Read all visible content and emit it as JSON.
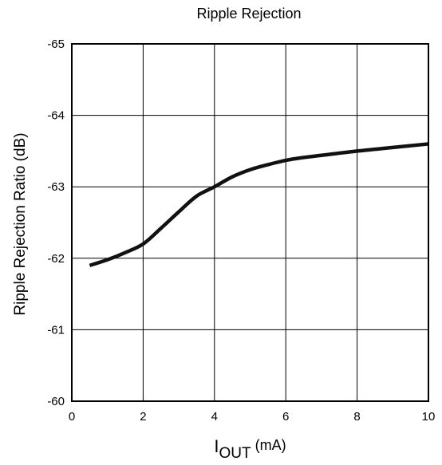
{
  "chart_data": {
    "type": "line",
    "title": "Ripple Rejection",
    "ylabel": "Ripple Rejection Ratio (dB)",
    "xlabel": {
      "main": "I",
      "subscript": "OUT",
      "unit": "(mA)"
    },
    "xlim": [
      0,
      10
    ],
    "ylim": [
      -60,
      -65
    ],
    "y_axis_inverted": true,
    "x_ticks": [
      "0",
      "2",
      "4",
      "6",
      "8",
      "10"
    ],
    "x_tick_values": [
      0,
      2,
      4,
      6,
      8,
      10
    ],
    "y_ticks": [
      "-60",
      "-61",
      "-62",
      "-63",
      "-64",
      "-65"
    ],
    "y_tick_values": [
      -60,
      -61,
      -62,
      -63,
      -64,
      -65
    ],
    "grid": true,
    "series": [
      {
        "x": [
          0.5,
          1.0,
          1.5,
          2.0,
          2.5,
          3.0,
          3.5,
          4.0,
          4.5,
          5.0,
          5.5,
          6.0,
          6.5,
          7.0,
          8.0,
          9.0,
          10.0
        ],
        "y": [
          -61.9,
          -61.98,
          -62.08,
          -62.2,
          -62.42,
          -62.65,
          -62.87,
          -63.0,
          -63.14,
          -63.24,
          -63.31,
          -63.37,
          -63.41,
          -63.44,
          -63.5,
          -63.55,
          -63.6
        ],
        "color": "#111111"
      }
    ]
  }
}
